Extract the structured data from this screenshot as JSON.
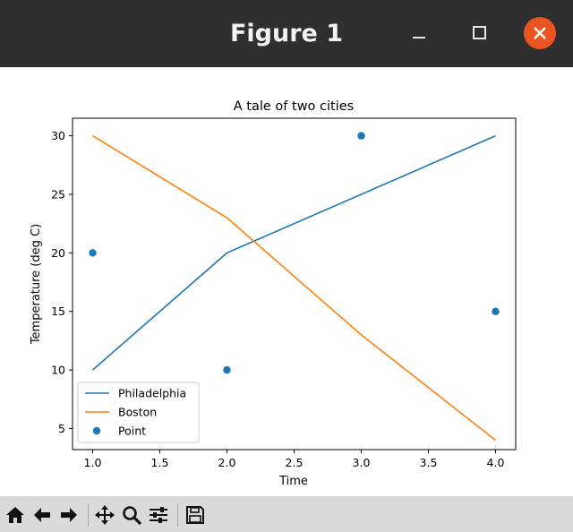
{
  "window": {
    "title": "Figure 1",
    "buttons": [
      "minimize",
      "maximize",
      "close"
    ]
  },
  "toolbar": {
    "icons": [
      "home-icon",
      "back-icon",
      "forward-icon",
      "pan-icon",
      "zoom-icon",
      "configure-subplots-icon",
      "save-icon"
    ]
  },
  "colors": {
    "titlebar": "#2f2f2f",
    "close_button": "#e95420",
    "toolbar": "#dadada",
    "series_1": "#1f77b4",
    "series_2": "#ff7f0e"
  },
  "chart_data": {
    "type": "line",
    "title": "A tale of two cities",
    "xlabel": "Time",
    "ylabel": "Temperature (deg C)",
    "xlim": [
      0.85,
      4.15
    ],
    "ylim": [
      3.2,
      31.5
    ],
    "xticks": [
      "1.0",
      "1.5",
      "2.0",
      "2.5",
      "3.0",
      "3.5",
      "4.0"
    ],
    "xtick_values": [
      1.0,
      1.5,
      2.0,
      2.5,
      3.0,
      3.5,
      4.0
    ],
    "yticks": [
      "5",
      "10",
      "15",
      "20",
      "25",
      "30"
    ],
    "ytick_values": [
      5,
      10,
      15,
      20,
      25,
      30
    ],
    "grid": false,
    "legend_position": "lower-left",
    "series": [
      {
        "name": "Philadelphia",
        "kind": "line",
        "color": "#1f77b4",
        "x": [
          1,
          2,
          3,
          4
        ],
        "y": [
          10,
          20,
          25,
          30
        ]
      },
      {
        "name": "Boston",
        "kind": "line",
        "color": "#ff7f0e",
        "x": [
          1,
          2,
          3,
          4
        ],
        "y": [
          30,
          23,
          13,
          4
        ]
      },
      {
        "name": "Point",
        "kind": "scatter",
        "color": "#1f77b4",
        "x": [
          1,
          2,
          3,
          4
        ],
        "y": [
          20,
          10,
          30,
          15
        ]
      }
    ]
  }
}
